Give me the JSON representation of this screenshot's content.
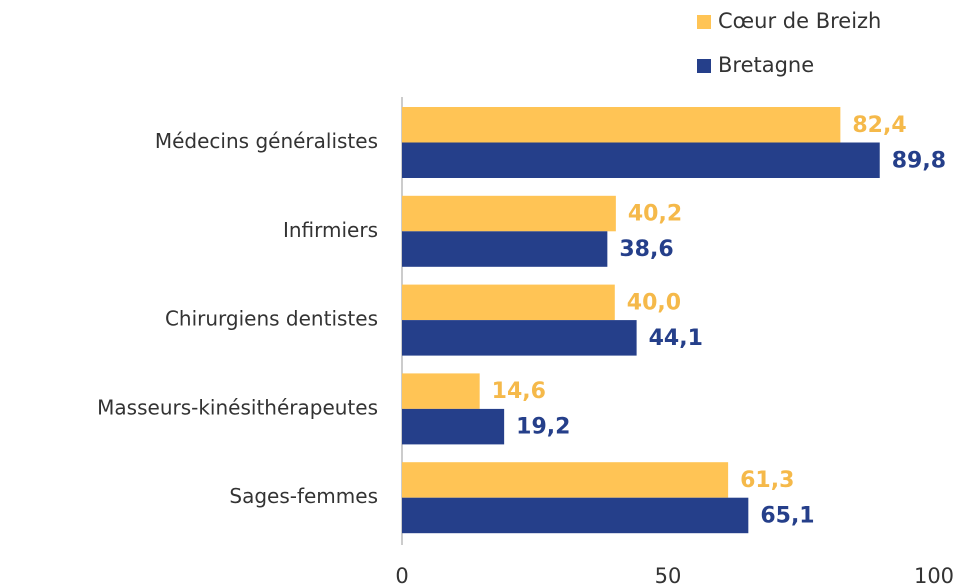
{
  "chart_data": {
    "type": "barh",
    "categories": [
      "Médecins généralistes",
      "Infirmiers",
      "Chirurgiens dentistes",
      "Masseurs-kinésithérapeutes",
      "Sages-femmes"
    ],
    "series": [
      {
        "name": "Cœur de Breizh",
        "color": "#FFC455",
        "label_color": "#F5B94A",
        "values": [
          82.4,
          40.2,
          40.0,
          14.6,
          61.3
        ],
        "value_labels": [
          "82,4",
          "40,2",
          "40,0",
          "14,6",
          "61,3"
        ]
      },
      {
        "name": "Bretagne",
        "color": "#253F8A",
        "label_color": "#253F8A",
        "values": [
          89.8,
          38.6,
          44.1,
          19.2,
          65.1
        ],
        "value_labels": [
          "89,8",
          "38,6",
          "44,1",
          "19,2",
          "65,1"
        ]
      }
    ],
    "xlim": [
      0,
      100
    ],
    "xticks": [
      0,
      50,
      100
    ],
    "grid": false,
    "legend": "top-right"
  }
}
